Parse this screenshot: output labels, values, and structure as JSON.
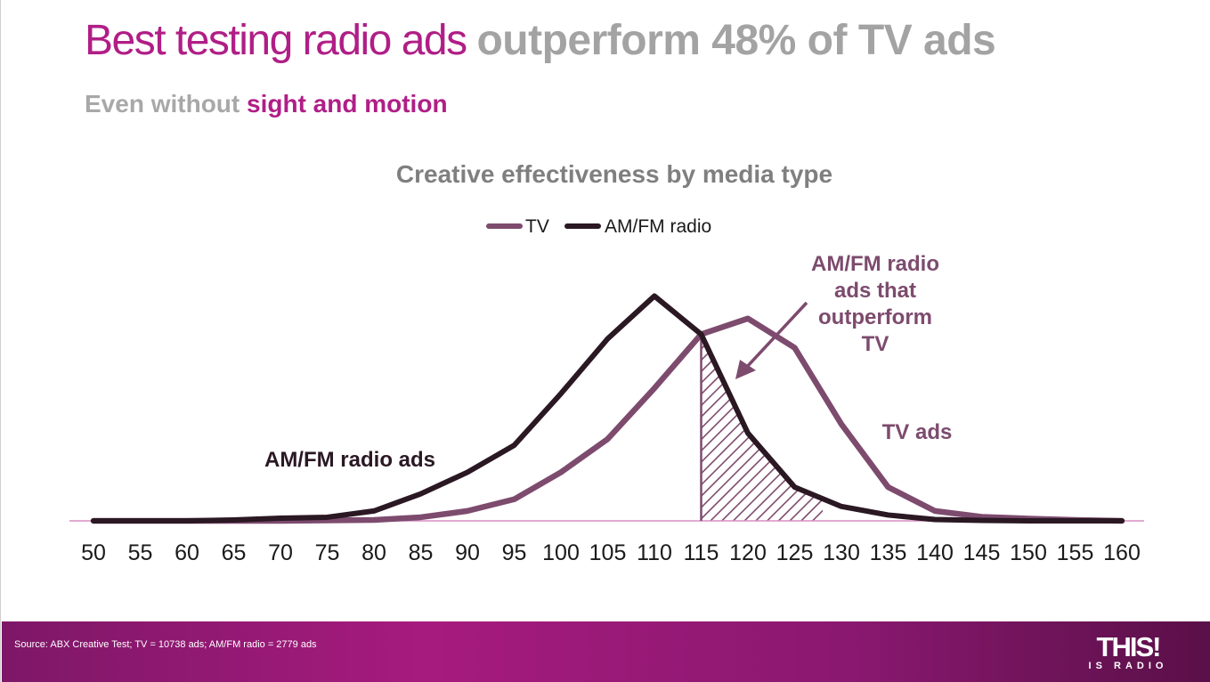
{
  "slide": {
    "headline_part1": "Best testing radio ads",
    "headline_part2": "outperform 48% of TV ads",
    "subhead_part1": "Even without",
    "subhead_part2": "sight and motion"
  },
  "colors": {
    "accent_pink": "#b01e86",
    "tv": "#7d4b6e",
    "radio": "#2a1823",
    "baseline": "#d98fc3",
    "title_grey": "#7f7f7f",
    "footer": "#a61b7e"
  },
  "chart_data": {
    "type": "line",
    "title": "Creative effectiveness by media type",
    "x": [
      50,
      55,
      60,
      65,
      70,
      75,
      80,
      85,
      90,
      95,
      100,
      105,
      110,
      115,
      120,
      125,
      130,
      135,
      140,
      145,
      150,
      155,
      160
    ],
    "series": [
      {
        "name": "TV",
        "values": [
          0,
          0,
          0,
          0,
          0,
          0.1,
          0.2,
          0.8,
          2.2,
          4.8,
          10.8,
          18.2,
          29.5,
          41.5,
          45,
          38.5,
          21.5,
          7.5,
          2.2,
          0.9,
          0.5,
          0.2,
          0
        ]
      },
      {
        "name": "AM/FM radio",
        "values": [
          0,
          0,
          0,
          0.2,
          0.6,
          0.8,
          2.2,
          6,
          10.8,
          16.8,
          28.3,
          40.5,
          50,
          41.5,
          19.5,
          7.5,
          3.2,
          1.3,
          0.3,
          0.1,
          0,
          0,
          0
        ]
      }
    ],
    "ylim": [
      0,
      50
    ],
    "grid": false,
    "legend_position": "top-center",
    "shaded_region": {
      "from": 115,
      "to": 128,
      "series": "AM/FM radio"
    },
    "annotations": {
      "radio_curve_label": "AM/FM radio ads",
      "tv_curve_label": "TV ads",
      "outperform_lines": [
        "AM/FM radio",
        "ads that",
        "outperform",
        "TV"
      ]
    }
  },
  "footer": {
    "source": "Source: ABX Creative Test; TV = 10738 ads; AM/FM radio = 2779 ads",
    "logo_main": "THIS!",
    "logo_sub": "IS RADIO"
  }
}
